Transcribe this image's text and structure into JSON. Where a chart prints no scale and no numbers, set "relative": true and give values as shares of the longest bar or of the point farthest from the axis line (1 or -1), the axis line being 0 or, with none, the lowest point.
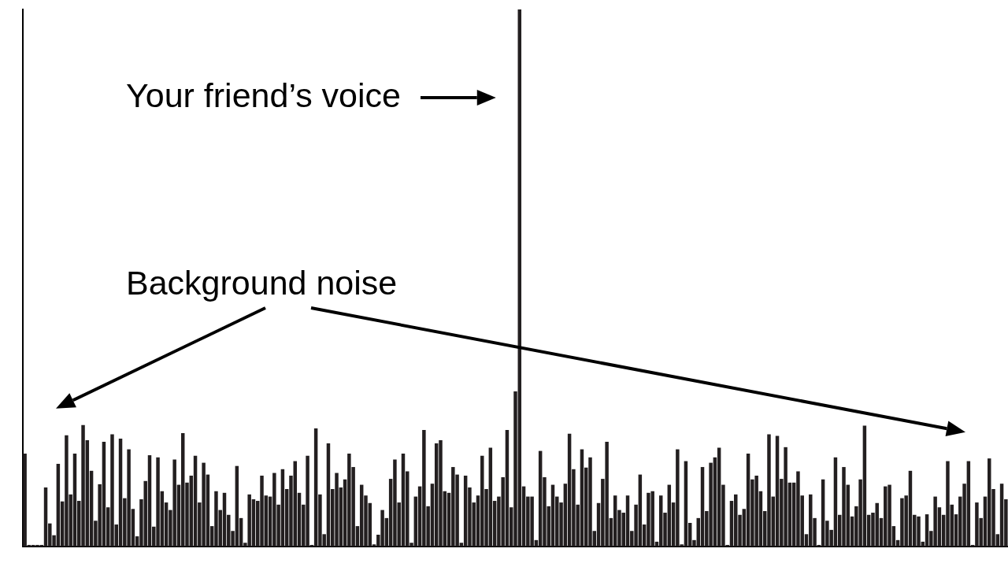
{
  "chart_data": {
    "type": "bar",
    "relative": true,
    "color": "#231f20",
    "annotations": [
      "Your friend’s voice",
      "Background noise"
    ],
    "categories": [
      null,
      null,
      null,
      null,
      null,
      null,
      null,
      null,
      null,
      null,
      null,
      null,
      null,
      null,
      null,
      null,
      null,
      null,
      null,
      null,
      null,
      null,
      null,
      null,
      null,
      null,
      null,
      null,
      null,
      null,
      null,
      null,
      null,
      null,
      null,
      null,
      null,
      null,
      null,
      null,
      null,
      null,
      null,
      null,
      null,
      null,
      null,
      null,
      null,
      null,
      null,
      null,
      null,
      null,
      null,
      null,
      null,
      null,
      null,
      null,
      null,
      null,
      null,
      null,
      null,
      null,
      null,
      null,
      null,
      null,
      null,
      null,
      null,
      null,
      null,
      null,
      null,
      null,
      null,
      null,
      null,
      null,
      null,
      null,
      null,
      null,
      null,
      null,
      null,
      null,
      null,
      null,
      null,
      null,
      null,
      null,
      null,
      null,
      null,
      null,
      null,
      null,
      null,
      null,
      null,
      null,
      null,
      null,
      null,
      null,
      null,
      null,
      null,
      null,
      null,
      null,
      null,
      null,
      null,
      null,
      null,
      null,
      null,
      null,
      null,
      null,
      null,
      null,
      null,
      null,
      null,
      null,
      null,
      null,
      null,
      null,
      null,
      null,
      null,
      null,
      null,
      null,
      null,
      null,
      null,
      null,
      null,
      null,
      null,
      null,
      null,
      null,
      null,
      null,
      null,
      null,
      null,
      null,
      null,
      null,
      null,
      null,
      null,
      null,
      null,
      null,
      null,
      null,
      null,
      null,
      null,
      null,
      null,
      null,
      null,
      null,
      null,
      null,
      null,
      null,
      null,
      null,
      null,
      null,
      null,
      null,
      null,
      null,
      null,
      null,
      null,
      null,
      null,
      null,
      null,
      null,
      null,
      null,
      null,
      null,
      null,
      null,
      null,
      null,
      null,
      null,
      null,
      null,
      null,
      null,
      null,
      null,
      null,
      null,
      null,
      null,
      null,
      null,
      null,
      null,
      null,
      null,
      null,
      null,
      null,
      null,
      null,
      null,
      null,
      null,
      null,
      null,
      null,
      null,
      null,
      null,
      null
    ],
    "values": [
      0.173,
      0.003,
      0.003,
      0.003,
      0.003,
      0.11,
      0.043,
      0.021,
      0.154,
      0.084,
      0.207,
      0.097,
      0.173,
      0.085,
      0.226,
      0.198,
      0.141,
      0.048,
      0.116,
      0.195,
      0.073,
      0.209,
      0.041,
      0.201,
      0.09,
      0.181,
      0.07,
      0.019,
      0.088,
      0.122,
      0.17,
      0.037,
      0.166,
      0.103,
      0.082,
      0.068,
      0.162,
      0.115,
      0.211,
      0.119,
      0.132,
      0.169,
      0.082,
      0.156,
      0.134,
      0.038,
      0.103,
      0.068,
      0.1,
      0.059,
      0.029,
      0.15,
      0.053,
      0.007,
      0.097,
      0.088,
      0.085,
      0.132,
      0.095,
      0.093,
      0.137,
      0.078,
      0.144,
      0.107,
      0.132,
      0.159,
      0.1,
      0.078,
      0.169,
      0.003,
      0.22,
      0.097,
      0.023,
      0.192,
      0.107,
      0.137,
      0.11,
      0.125,
      0.173,
      0.148,
      0.038,
      0.115,
      0.095,
      0.081,
      0.004,
      0.022,
      0.068,
      0.053,
      0.126,
      0.162,
      0.082,
      0.173,
      0.14,
      0.007,
      0.093,
      0.112,
      0.217,
      0.075,
      0.117,
      0.192,
      0.198,
      0.103,
      0.1,
      0.148,
      0.134,
      0.007,
      0.132,
      0.11,
      0.082,
      0.095,
      0.169,
      0.107,
      0.184,
      0.085,
      0.093,
      0.129,
      0.217,
      0.073,
      0.289,
      1,
      0.112,
      0.093,
      0.093,
      0.012,
      0.178,
      0.129,
      0.075,
      0.115,
      0.093,
      0.082,
      0.117,
      0.21,
      0.144,
      0.078,
      0.181,
      0.147,
      0.166,
      0.029,
      0.081,
      0.126,
      0.195,
      0.053,
      0.095,
      0.068,
      0.063,
      0.095,
      0.029,
      0.078,
      0.134,
      0.041,
      0.1,
      0.103,
      0.009,
      0.095,
      0.063,
      0.115,
      0.082,
      0.181,
      0.004,
      0.159,
      0.044,
      0.012,
      0.053,
      0.148,
      0.066,
      0.156,
      0.166,
      0.184,
      0.115,
      0.003,
      0.085,
      0.097,
      0.059,
      0.07,
      0.173,
      0.125,
      0.132,
      0.103,
      0.066,
      0.209,
      0.093,
      0.206,
      0.126,
      0.185,
      0.119,
      0.119,
      0.14,
      0.095,
      0.023,
      0.097,
      0.053,
      0.003,
      0.125,
      0.048,
      0.031,
      0.166,
      0.059,
      0.148,
      0.115,
      0.056,
      0.075,
      0.125,
      0.225,
      0.059,
      0.063,
      0.081,
      0.053,
      0.112,
      0.115,
      0.038,
      0.012,
      0.09,
      0.095,
      0.141,
      0.059,
      0.056,
      0.009,
      0.06,
      0.029,
      0.093,
      0.073,
      0.059,
      0.159,
      0.078,
      0.06,
      0.093,
      0.117,
      0.159,
      0.003,
      0.082,
      0.053,
      0.093,
      0.164,
      0.107,
      0.023,
      0.117,
      0.088
    ]
  }
}
